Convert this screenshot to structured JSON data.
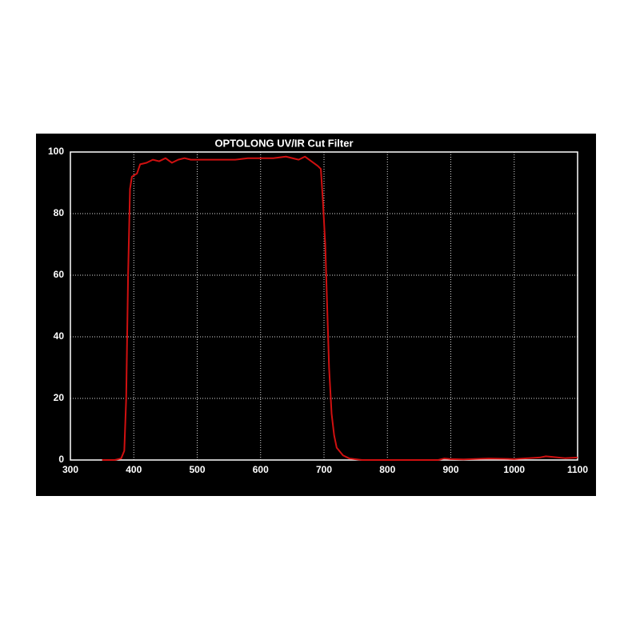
{
  "chart_data": {
    "type": "line",
    "title": "OPTOLONG UV/IR Cut Filter",
    "x": [
      350,
      370,
      380,
      385,
      388,
      391,
      394,
      397,
      405,
      410,
      420,
      430,
      440,
      450,
      460,
      470,
      480,
      490,
      500,
      520,
      540,
      560,
      580,
      600,
      620,
      640,
      660,
      670,
      680,
      690,
      695,
      698,
      702,
      705,
      708,
      712,
      716,
      720,
      730,
      740,
      760,
      800,
      880,
      890,
      900,
      920,
      960,
      1000,
      1040,
      1050,
      1060,
      1080,
      1100
    ],
    "series": [
      {
        "color": "#d01010",
        "values": [
          0,
          0,
          0.5,
          3,
          20,
          60,
          88,
          92,
          93,
          96,
          96.5,
          97.5,
          97,
          98,
          96.5,
          97.5,
          98,
          97.5,
          97.5,
          97.5,
          97.5,
          97.5,
          98,
          98,
          98,
          98.5,
          97.5,
          98.5,
          97,
          95.5,
          94.5,
          85,
          70,
          50,
          30,
          15,
          8,
          4,
          1.5,
          0.5,
          0,
          0,
          0,
          0.5,
          0.3,
          0.2,
          0.5,
          0.3,
          0.8,
          1.2,
          1,
          0.6,
          0.8
        ]
      }
    ],
    "xlim": [
      300,
      1100
    ],
    "xticks": [
      300,
      400,
      500,
      600,
      700,
      800,
      900,
      1000,
      1100
    ],
    "ylim": [
      0,
      100
    ],
    "yticks": [
      0,
      20,
      40,
      60,
      80,
      100
    ],
    "grid": true
  }
}
